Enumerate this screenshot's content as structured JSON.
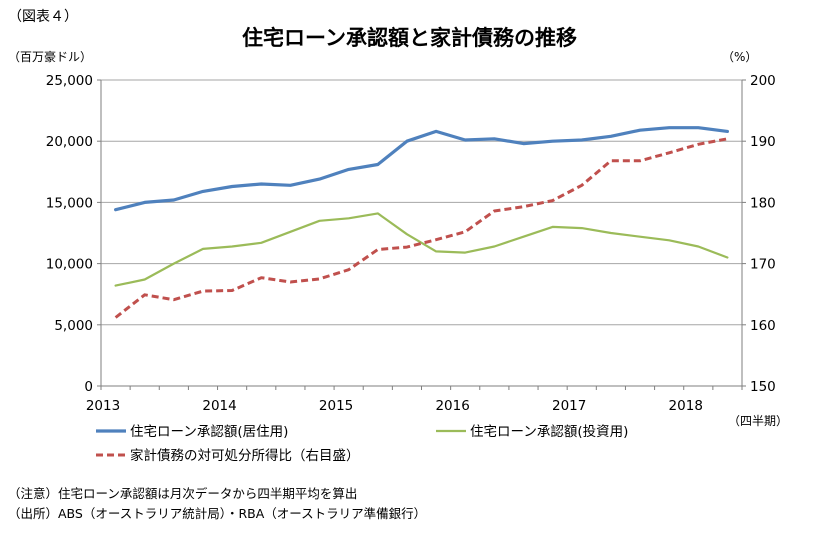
{
  "figure_label": "（図表４）",
  "chart_data": {
    "type": "line",
    "title": "住宅ローン承認額と家計債務の推移",
    "left_unit": "（百万豪ドル）",
    "right_unit": "（%）",
    "period_label": "（四半期）",
    "x_tick_labels": [
      "2013",
      "2014",
      "2015",
      "2016",
      "2017",
      "2018"
    ],
    "x_tick_positions": [
      0,
      4,
      8,
      12,
      16,
      20
    ],
    "x_range": [
      0,
      22
    ],
    "left_axis": {
      "ylim": [
        0,
        25000
      ],
      "ticks": [
        0,
        5000,
        10000,
        15000,
        20000,
        25000
      ],
      "tick_labels": [
        "0",
        "5,000",
        "10,000",
        "15,000",
        "20,000",
        "25,000"
      ]
    },
    "right_axis": {
      "ylim": [
        150,
        200
      ],
      "ticks": [
        150,
        160,
        170,
        180,
        190,
        200
      ],
      "tick_labels": [
        "150",
        "160",
        "170",
        "180",
        "190",
        "200"
      ]
    },
    "grid": true,
    "legend_position": "bottom",
    "series": [
      {
        "name": "住宅ローン承認額(居住用)",
        "axis": "left",
        "color": "#4f81bd",
        "style": "solid",
        "x": [
          0,
          1,
          2,
          3,
          4,
          5,
          6,
          7,
          8,
          9,
          10,
          11,
          12,
          13,
          14,
          15,
          16,
          17,
          18,
          19,
          20,
          21
        ],
        "values": [
          14400,
          15000,
          15200,
          15900,
          16300,
          16500,
          16400,
          16900,
          17700,
          18100,
          20000,
          20800,
          20100,
          20200,
          19800,
          20000,
          20100,
          20400,
          20900,
          21100,
          21100,
          20800
        ]
      },
      {
        "name": "住宅ローン承認額(投資用)",
        "axis": "left",
        "color": "#9bbb59",
        "style": "solid",
        "x": [
          0,
          1,
          2,
          3,
          4,
          5,
          6,
          7,
          8,
          9,
          10,
          11,
          12,
          13,
          14,
          15,
          16,
          17,
          18,
          19,
          20,
          21
        ],
        "values": [
          8200,
          8700,
          10000,
          11200,
          11400,
          11700,
          12600,
          13500,
          13700,
          14100,
          12400,
          11000,
          10900,
          11400,
          12200,
          13000,
          12900,
          12500,
          12200,
          11900,
          11400,
          10500
        ]
      },
      {
        "name": "家計債務の対可処分所得比（右目盛）",
        "axis": "right",
        "color": "#c0504d",
        "style": "dashed",
        "x": [
          0,
          1,
          2,
          3,
          4,
          5,
          6,
          7,
          8,
          9,
          10,
          11,
          12,
          13,
          14,
          15,
          16,
          17,
          18,
          19,
          20,
          21
        ],
        "values": [
          161.2,
          164.9,
          164.1,
          165.5,
          165.6,
          167.7,
          167.0,
          167.5,
          169.0,
          172.3,
          172.7,
          173.9,
          175.2,
          178.6,
          179.3,
          180.3,
          182.8,
          186.8,
          186.8,
          188.1,
          189.5,
          190.4
        ]
      }
    ]
  },
  "notes": [
    "（注意）住宅ローン承認額は月次データから四半期平均を算出",
    "（出所）ABS（オーストラリア統計局）・RBA（オーストラリア準備銀行）"
  ]
}
